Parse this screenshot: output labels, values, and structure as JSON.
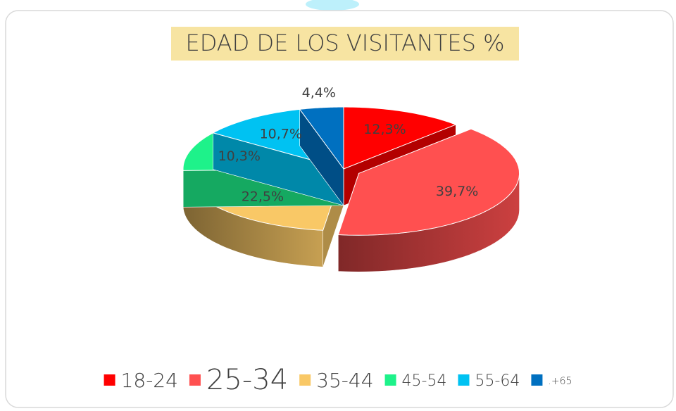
{
  "chart_data": {
    "type": "pie",
    "title": "EDAD DE LOS VISITANTES %",
    "categories": [
      "18-24",
      "25-34",
      "35-44",
      "45-54",
      "55-64",
      ".+65"
    ],
    "values": [
      12.3,
      39.7,
      22.5,
      10.3,
      10.7,
      4.4
    ],
    "value_labels": [
      "12,3%",
      "39,7%",
      "22,5%",
      "10,3%",
      "10,7%",
      "4,4%"
    ],
    "colors": [
      "#ff0000",
      "#ff5050",
      "#f9c866",
      "#1ef28a",
      "#00c2f2",
      "#0070c0"
    ],
    "legend": "bottom"
  }
}
